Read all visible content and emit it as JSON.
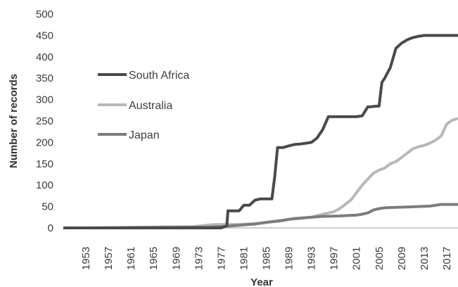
{
  "chart_data": {
    "type": "line",
    "title": "",
    "xlabel": "Year",
    "ylabel": "Number of records",
    "xlim": [
      1949,
      2019
    ],
    "ylim": [
      0,
      500
    ],
    "yticks": [
      0,
      50,
      100,
      150,
      200,
      250,
      300,
      350,
      400,
      450,
      500
    ],
    "xticks": [
      "1953",
      "1957",
      "1961",
      "1965",
      "1969",
      "1973",
      "1977",
      "1981",
      "1985",
      "1989",
      "1993",
      "1997",
      "2001",
      "2005",
      "2009",
      "2013",
      "2017"
    ],
    "grid": false,
    "legend_position": "left-middle",
    "series": [
      {
        "name": "South Africa",
        "color": "#4a4a4a",
        "x": [
          1949,
          1977,
          1978,
          1978.2,
          1980,
          1980.2,
          1981,
          1982,
          1983,
          1984,
          1985,
          1986,
          1986.5,
          1987,
          1988,
          1989,
          1990,
          1991,
          1992,
          1993,
          1994,
          1995,
          1996,
          1997,
          1998,
          1999,
          2000,
          2001,
          2002,
          2003,
          2003.5,
          2004,
          2005,
          2005.5,
          2006,
          2007,
          2008,
          2009,
          2010,
          2011,
          2012,
          2013,
          2014,
          2015,
          2016,
          2017,
          2018,
          2019
        ],
        "y": [
          0,
          0,
          5,
          40,
          40,
          40,
          53,
          53,
          65,
          68,
          68,
          68,
          120,
          188,
          188,
          192,
          195,
          196,
          198,
          200,
          210,
          230,
          260,
          260,
          260,
          260,
          260,
          260,
          262,
          283,
          283,
          284,
          285,
          340,
          350,
          375,
          420,
          432,
          440,
          445,
          448,
          450,
          450,
          450,
          450,
          450,
          450,
          450
        ]
      },
      {
        "name": "Australia",
        "color": "#b8b8b8",
        "x": [
          1949,
          1953,
          1965,
          1972,
          1975,
          1976,
          1980,
          1983,
          1985,
          1987,
          1989,
          1991,
          1993,
          1995,
          1997,
          1998,
          2000,
          2002,
          2004,
          2005,
          2006,
          2007,
          2008,
          2009,
          2010,
          2011,
          2012,
          2013,
          2014,
          2015,
          2016,
          2017,
          2018,
          2019
        ],
        "y": [
          0,
          0,
          2,
          3,
          7,
          8,
          8,
          10,
          13,
          15,
          20,
          22,
          25,
          32,
          38,
          45,
          65,
          100,
          128,
          135,
          140,
          150,
          155,
          165,
          175,
          185,
          190,
          193,
          198,
          205,
          215,
          243,
          252,
          256
        ]
      },
      {
        "name": "Japan",
        "color": "#7c7c7c",
        "x": [
          1949,
          1953,
          1965,
          1975,
          1978,
          1980,
          1983,
          1985,
          1988,
          1990,
          1992,
          1995,
          1998,
          2001,
          2002,
          2003,
          2004,
          2005,
          2006,
          2008,
          2010,
          2012,
          2014,
          2016,
          2018,
          2019
        ],
        "y": [
          0,
          0,
          1,
          2,
          4,
          6,
          9,
          13,
          18,
          22,
          24,
          27,
          28,
          30,
          32,
          35,
          42,
          45,
          47,
          48,
          49,
          50,
          51,
          55,
          55,
          55
        ]
      }
    ]
  }
}
